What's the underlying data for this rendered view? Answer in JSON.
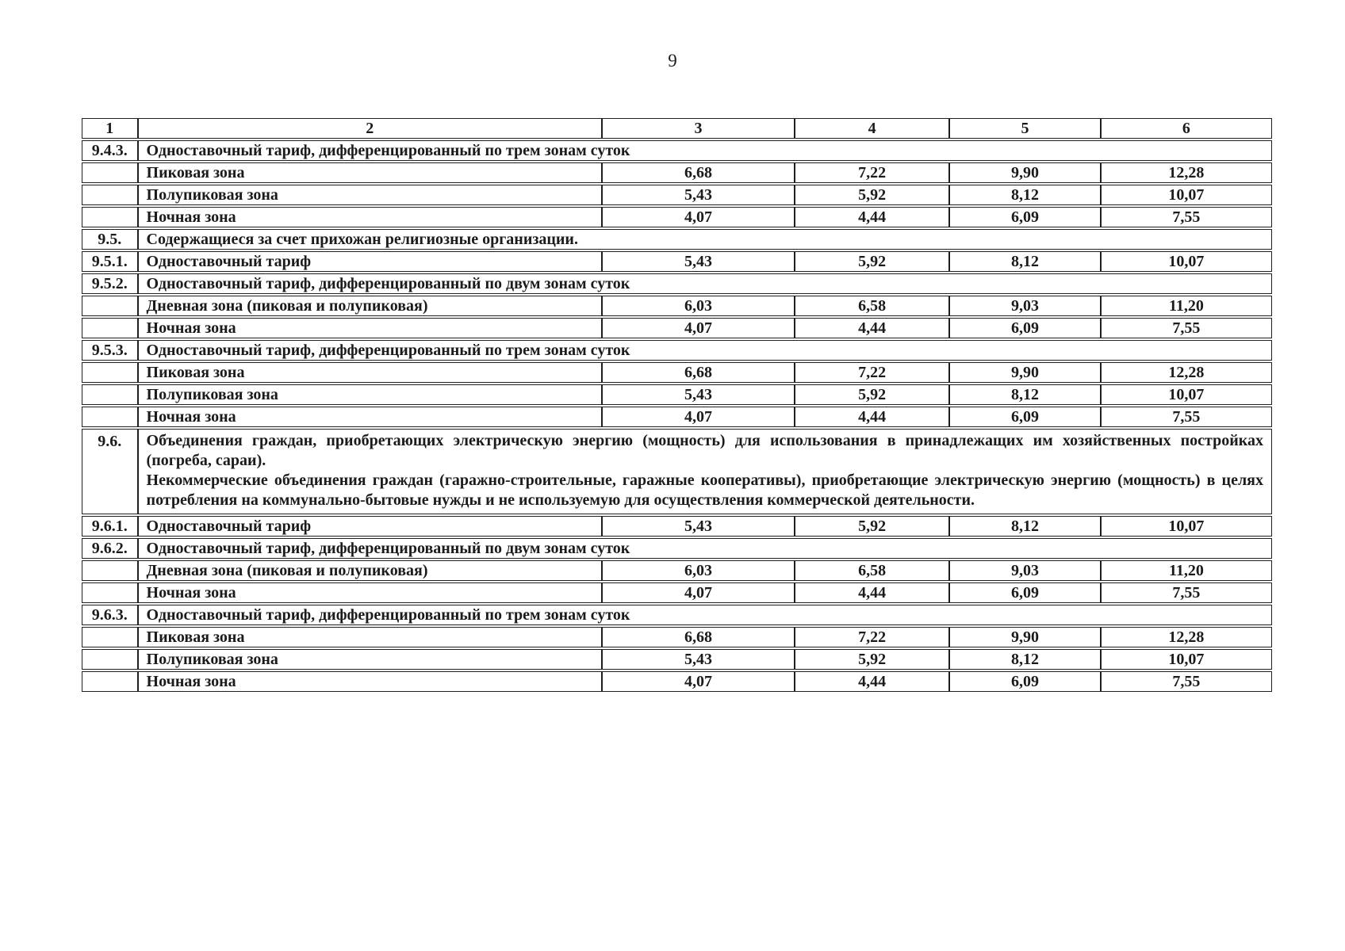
{
  "page": {
    "number": "9"
  },
  "colors": {
    "background": "#ffffff",
    "text": "#1b1b1b",
    "border": "#1f1f1f"
  },
  "table": {
    "column_widths_pct": [
      4.7,
      39.0,
      16.2,
      13.0,
      12.7,
      14.4
    ],
    "rows": [
      {
        "type": "header",
        "cells": [
          "1",
          "2",
          "3",
          "4",
          "5",
          "6"
        ]
      },
      {
        "type": "section",
        "num": "9.4.3.",
        "text": "Одноставочный тариф, дифференцированный по трем зонам суток"
      },
      {
        "type": "data",
        "num": "",
        "label": "Пиковая зона",
        "values": [
          "6,68",
          "7,22",
          "9,90",
          "12,28"
        ]
      },
      {
        "type": "data",
        "num": "",
        "label": "Полупиковая зона",
        "values": [
          "5,43",
          "5,92",
          "8,12",
          "10,07"
        ]
      },
      {
        "type": "data",
        "num": "",
        "label": "Ночная зона",
        "values": [
          "4,07",
          "4,44",
          "6,09",
          "7,55"
        ]
      },
      {
        "type": "section",
        "num": "9.5.",
        "text": "Содержащиеся за счет прихожан религиозные организации."
      },
      {
        "type": "data",
        "num": "9.5.1.",
        "label": "Одноставочный тариф",
        "values": [
          "5,43",
          "5,92",
          "8,12",
          "10,07"
        ]
      },
      {
        "type": "section",
        "num": "9.5.2.",
        "text": "Одноставочный тариф, дифференцированный по двум зонам суток"
      },
      {
        "type": "data",
        "num": "",
        "label": "Дневная зона (пиковая и полупиковая)",
        "values": [
          "6,03",
          "6,58",
          "9,03",
          "11,20"
        ]
      },
      {
        "type": "data",
        "num": "",
        "label": "Ночная зона",
        "values": [
          "4,07",
          "4,44",
          "6,09",
          "7,55"
        ]
      },
      {
        "type": "section",
        "num": "9.5.3.",
        "text": "Одноставочный тариф, дифференцированный по трем зонам суток"
      },
      {
        "type": "data",
        "num": "",
        "label": "Пиковая зона",
        "values": [
          "6,68",
          "7,22",
          "9,90",
          "12,28"
        ]
      },
      {
        "type": "data",
        "num": "",
        "label": "Полупиковая зона",
        "values": [
          "5,43",
          "5,92",
          "8,12",
          "10,07"
        ]
      },
      {
        "type": "data",
        "num": "",
        "label": "Ночная зона",
        "values": [
          "4,07",
          "4,44",
          "6,09",
          "7,55"
        ]
      },
      {
        "type": "section-multi",
        "num": "9.6.",
        "paragraphs": [
          "Объединения граждан, приобретающих электрическую энергию (мощность) для использования в принадлежащих им хозяйственных постройках (погреба, сараи).",
          "Некоммерческие объединения граждан (гаражно-строительные, гаражные кооперативы), приобретающие электрическую энергию (мощность) в целях потребления на коммунально-бытовые нужды и не используемую для осуществления коммерческой деятельности."
        ]
      },
      {
        "type": "data",
        "num": "9.6.1.",
        "label": "Одноставочный тариф",
        "values": [
          "5,43",
          "5,92",
          "8,12",
          "10,07"
        ]
      },
      {
        "type": "section",
        "num": "9.6.2.",
        "text": "Одноставочный тариф, дифференцированный по двум зонам суток"
      },
      {
        "type": "data",
        "num": "",
        "label": "Дневная зона (пиковая и полупиковая)",
        "values": [
          "6,03",
          "6,58",
          "9,03",
          "11,20"
        ]
      },
      {
        "type": "data",
        "num": "",
        "label": "Ночная зона",
        "values": [
          "4,07",
          "4,44",
          "6,09",
          "7,55"
        ]
      },
      {
        "type": "section",
        "num": "9.6.3.",
        "text": "Одноставочный тариф, дифференцированный по трем зонам суток"
      },
      {
        "type": "data",
        "num": "",
        "label": "Пиковая зона",
        "values": [
          "6,68",
          "7,22",
          "9,90",
          "12,28"
        ]
      },
      {
        "type": "data",
        "num": "",
        "label": "Полупиковая зона",
        "values": [
          "5,43",
          "5,92",
          "8,12",
          "10,07"
        ]
      },
      {
        "type": "data",
        "num": "",
        "label": "Ночная зона",
        "values": [
          "4,07",
          "4,44",
          "6,09",
          "7,55"
        ]
      }
    ]
  }
}
